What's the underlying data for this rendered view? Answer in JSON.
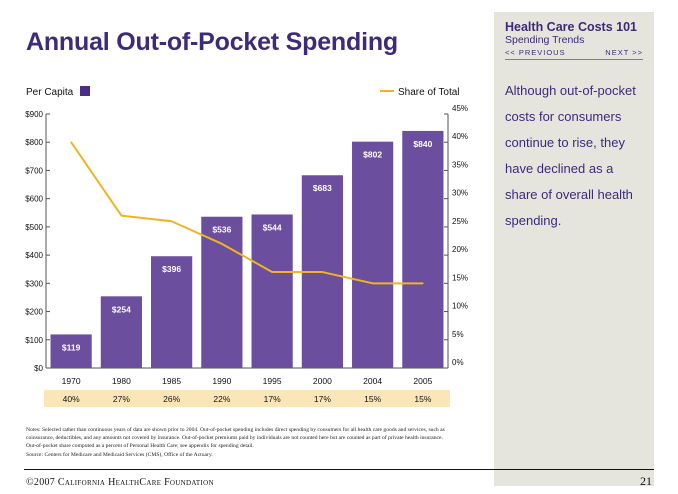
{
  "page": {
    "title": "Annual Out-of-Pocket Spending",
    "page_number": "21",
    "copyright": "©2007 California HealthCare Foundation"
  },
  "sidebar": {
    "title": "Health Care Costs 101",
    "subtitle": "Spending Trends",
    "prev_label": "<< PREVIOUS",
    "next_label": "NEXT >>",
    "body": "Although out-of-pocket costs for consumers continue to rise, they have declined as a share of overall health spending."
  },
  "notes": {
    "text": "Notes: Selected rather than continuous years of data are shown prior to 2004. Out-of-pocket spending includes direct spending by consumers for all health care goods and services, such as coinsurance, deductibles, and any amounts not covered by insurance. Out-of-pocket premiums paid by individuals are not counted here but are counted as part of private health insurance. Out-of-pocket share computed as a percent of Personal Health Care; see appendix for spending detail.",
    "source": "Source: Centers for Medicare and Medicaid Services (CMS), Office of the Actuary."
  },
  "colors": {
    "bar": "#6b4f9e",
    "line": "#f0b323",
    "title": "#3d2a7a",
    "share_row_bg": "#fbe6b8",
    "sidebar_bg": "#e6e5dd"
  },
  "chart_data": {
    "type": "bar",
    "title": "Annual Out-of-Pocket Spending",
    "categories": [
      "1970",
      "1980",
      "1985",
      "1990",
      "1995",
      "2000",
      "2004",
      "2005"
    ],
    "series": [
      {
        "name": "Per Capita",
        "type": "bar",
        "axis": "left",
        "values": [
          119,
          254,
          396,
          536,
          544,
          683,
          802,
          840
        ],
        "labels": [
          "$119",
          "$254",
          "$396",
          "$536",
          "$544",
          "$683",
          "$802",
          "$840"
        ]
      },
      {
        "name": "Share of Total",
        "type": "line",
        "axis": "right",
        "values": [
          40,
          27,
          26,
          22,
          17,
          17,
          15,
          15
        ],
        "labels": [
          "40%",
          "27%",
          "26%",
          "22%",
          "17%",
          "17%",
          "15%",
          "15%"
        ]
      }
    ],
    "left_axis": {
      "ylim": [
        0,
        900
      ],
      "ticks": [
        "$0",
        "$100",
        "$200",
        "$300",
        "$400",
        "$500",
        "$600",
        "$700",
        "$800",
        "$900"
      ]
    },
    "right_axis": {
      "ylim": [
        0,
        45
      ],
      "ticks": [
        "0%",
        "5%",
        "10%",
        "15%",
        "20%",
        "25%",
        "30%",
        "35%",
        "40%",
        "45%"
      ]
    },
    "legend": {
      "left": "Per Capita",
      "right": "Share of Total",
      "placement": "top"
    },
    "grid": false
  }
}
